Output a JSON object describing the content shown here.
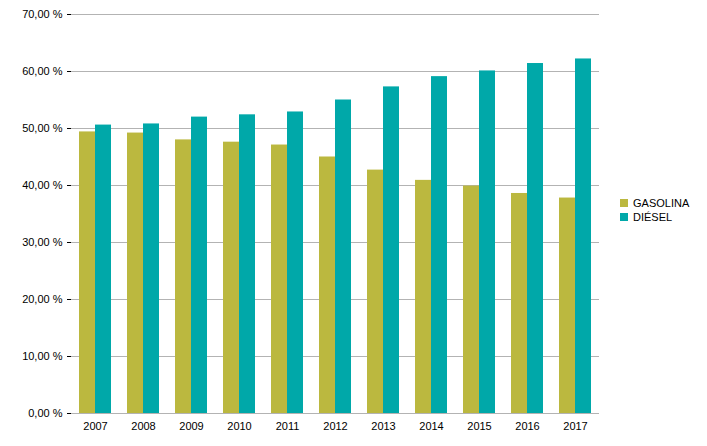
{
  "chart_data": {
    "type": "bar",
    "categories": [
      "2007",
      "2008",
      "2009",
      "2010",
      "2011",
      "2012",
      "2013",
      "2014",
      "2015",
      "2016",
      "2017"
    ],
    "series": [
      {
        "name": "GASOLINA",
        "color": "#bbb83f",
        "values": [
          49.4,
          49.2,
          48.0,
          47.6,
          47.1,
          45.0,
          42.7,
          40.9,
          39.9,
          38.6,
          37.8
        ]
      },
      {
        "name": "DIÉSEL",
        "color": "#00a8a9",
        "values": [
          50.6,
          50.8,
          52.0,
          52.4,
          52.9,
          55.0,
          57.3,
          59.1,
          60.1,
          61.4,
          62.2
        ]
      }
    ],
    "ylim": [
      0,
      70
    ],
    "yticks": [
      {
        "value": 0,
        "label": "0,00 %"
      },
      {
        "value": 10,
        "label": "10,00 %"
      },
      {
        "value": 20,
        "label": "20,00 %"
      },
      {
        "value": 30,
        "label": "30,00 %"
      },
      {
        "value": 40,
        "label": "40,00 %"
      },
      {
        "value": 50,
        "label": "50,00 %"
      },
      {
        "value": 60,
        "label": "60,00 %"
      },
      {
        "value": 70,
        "label": "70,00 %"
      }
    ],
    "grid": true,
    "legend": "right"
  }
}
